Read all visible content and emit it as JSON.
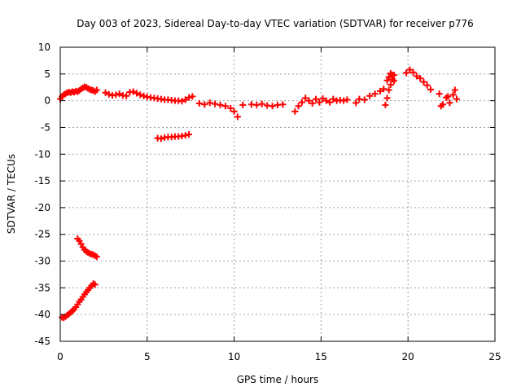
{
  "chart_data": {
    "type": "scatter",
    "title": "Day 003 of 2023, Sidereal Day-to-day VTEC variation (SDTVAR) for receiver p776",
    "xlabel": "GPS time / hours",
    "ylabel": "SDTVAR / TECUs",
    "xlim": [
      0,
      25
    ],
    "ylim": [
      -45,
      10
    ],
    "xticks": [
      0,
      5,
      10,
      15,
      20,
      25
    ],
    "yticks": [
      10,
      5,
      0,
      -5,
      -10,
      -15,
      -20,
      -25,
      -30,
      -35,
      -40,
      -45
    ],
    "grid": true,
    "marker": "plus",
    "color": "#ff0000",
    "series": [
      {
        "name": "SDTVAR",
        "x": [
          0.0,
          0.1,
          0.2,
          0.3,
          0.4,
          0.5,
          0.6,
          0.7,
          0.8,
          0.9,
          1.0,
          1.1,
          1.2,
          1.3,
          1.4,
          1.5,
          1.6,
          1.7,
          1.8,
          1.9,
          2.0,
          2.1,
          0.1,
          0.2,
          0.3,
          0.4,
          0.5,
          0.6,
          0.7,
          0.8,
          0.9,
          1.0,
          1.1,
          1.2,
          1.3,
          1.4,
          1.5,
          1.6,
          1.7,
          1.8,
          1.9,
          2.0,
          1.0,
          1.1,
          1.2,
          1.3,
          1.4,
          1.5,
          1.6,
          1.7,
          1.8,
          1.9,
          2.0,
          2.1,
          2.6,
          2.8,
          3.0,
          3.2,
          3.4,
          3.6,
          3.8,
          4.0,
          4.2,
          4.4,
          4.6,
          4.8,
          5.0,
          5.2,
          5.4,
          5.6,
          5.8,
          6.0,
          6.2,
          6.4,
          6.6,
          6.8,
          7.0,
          7.2,
          7.4,
          7.6,
          5.6,
          5.8,
          6.0,
          6.2,
          6.4,
          6.6,
          6.8,
          7.0,
          7.2,
          7.4,
          8.0,
          8.3,
          8.6,
          8.9,
          9.2,
          9.5,
          9.8,
          10.0,
          10.2,
          10.5,
          11.0,
          11.3,
          11.6,
          11.9,
          12.2,
          12.5,
          12.8,
          13.5,
          13.7,
          13.9,
          14.1,
          14.3,
          14.5,
          14.7,
          14.9,
          15.1,
          15.3,
          15.5,
          15.7,
          15.9,
          16.1,
          16.3,
          16.5,
          17.0,
          17.2,
          17.5,
          17.8,
          18.1,
          18.4,
          18.6,
          18.8,
          18.9,
          19.0,
          19.1,
          19.2,
          18.7,
          18.8,
          18.9,
          19.0,
          19.1,
          19.2,
          19.9,
          20.1,
          20.3,
          20.5,
          20.7,
          20.9,
          21.1,
          21.3,
          21.8,
          22.0,
          22.2,
          22.4,
          22.6,
          22.8,
          21.9,
          22.3,
          22.7
        ],
        "y": [
          0.3,
          0.8,
          1.1,
          1.3,
          1.5,
          1.6,
          1.5,
          1.7,
          1.6,
          1.8,
          1.7,
          1.9,
          2.2,
          2.4,
          2.6,
          2.5,
          2.3,
          2.1,
          2.0,
          1.9,
          1.7,
          2.0,
          -40.5,
          -40.6,
          -40.4,
          -40.1,
          -39.9,
          -39.6,
          -39.3,
          -39.0,
          -38.6,
          -38.1,
          -37.6,
          -37.2,
          -36.7,
          -36.2,
          -35.8,
          -35.4,
          -35.0,
          -34.6,
          -34.2,
          -34.4,
          -25.8,
          -26.2,
          -26.8,
          -27.4,
          -27.9,
          -28.2,
          -28.4,
          -28.6,
          -28.7,
          -28.8,
          -29.0,
          -29.2,
          1.5,
          1.2,
          1.0,
          1.1,
          1.3,
          1.0,
          0.9,
          1.6,
          1.7,
          1.4,
          1.1,
          0.9,
          0.7,
          0.6,
          0.5,
          0.4,
          0.3,
          0.2,
          0.2,
          0.1,
          0.0,
          0.0,
          -0.1,
          0.2,
          0.6,
          0.8,
          -7.0,
          -7.1,
          -6.9,
          -6.8,
          -6.8,
          -6.7,
          -6.7,
          -6.6,
          -6.5,
          -6.3,
          -0.5,
          -0.7,
          -0.4,
          -0.6,
          -0.8,
          -1.0,
          -1.4,
          -2.0,
          -3.0,
          -0.8,
          -0.7,
          -0.8,
          -0.6,
          -0.9,
          -1.0,
          -0.8,
          -0.7,
          -2.0,
          -1.0,
          -0.3,
          0.5,
          0.0,
          -0.5,
          0.3,
          -0.3,
          0.4,
          0.0,
          -0.3,
          0.3,
          0.0,
          0.1,
          0.0,
          0.2,
          -0.4,
          0.3,
          0.2,
          0.9,
          1.3,
          1.8,
          2.2,
          3.8,
          4.4,
          5.1,
          4.8,
          3.7,
          -0.8,
          0.5,
          2.0,
          3.0,
          4.0,
          4.8,
          5.2,
          5.8,
          5.3,
          4.6,
          4.2,
          3.5,
          2.9,
          2.1,
          1.3,
          -0.7,
          0.6,
          -0.4,
          1.1,
          0.3,
          -1.0,
          0.8,
          2.0
        ]
      }
    ]
  }
}
